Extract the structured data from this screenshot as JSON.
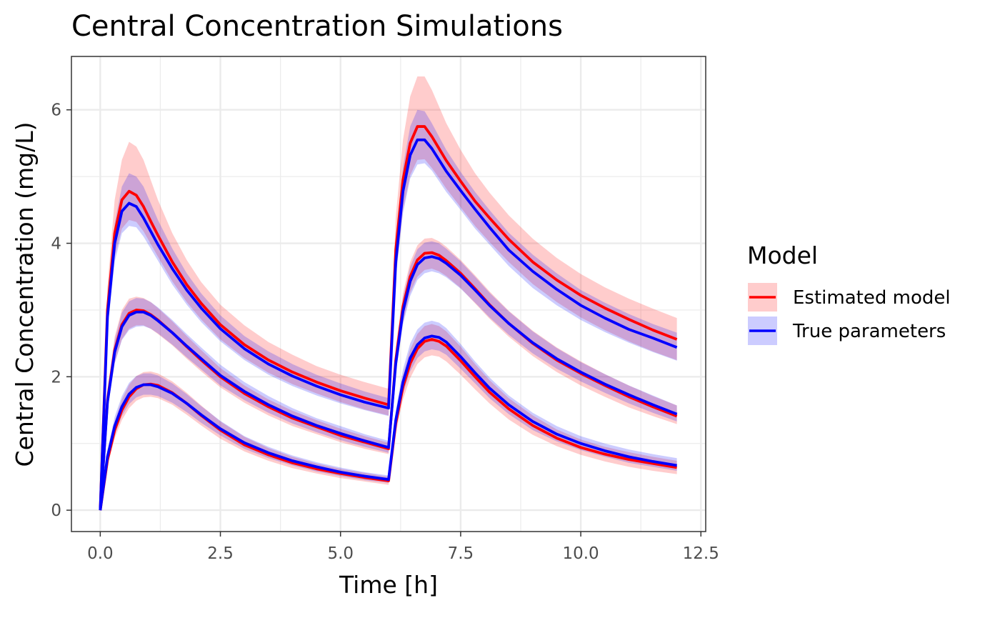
{
  "chart_data": {
    "type": "line",
    "title": "Central Concentration Simulations",
    "xlabel": "Time [h]",
    "ylabel": "Central Concentration (mg/L)",
    "xlim": [
      -0.6,
      12.6
    ],
    "ylim": [
      -0.32,
      6.8
    ],
    "x_ticks": [
      0.0,
      2.5,
      5.0,
      7.5,
      10.0,
      12.5
    ],
    "x_tick_labels": [
      "0.0",
      "2.5",
      "5.0",
      "7.5",
      "10.0",
      "12.5"
    ],
    "y_ticks": [
      0,
      2,
      4,
      6
    ],
    "y_tick_labels": [
      "0",
      "2",
      "4",
      "6"
    ],
    "grid": true,
    "legend": {
      "title": "Model",
      "position": "right",
      "items": [
        {
          "label": "Estimated model",
          "color": "#ff0000",
          "ribbon_color": "#ff0000"
        },
        {
          "label": "True parameters",
          "color": "#0000ff",
          "ribbon_color": "#0000ff"
        }
      ]
    },
    "x": [
      0,
      0.15,
      0.3,
      0.45,
      0.6,
      0.75,
      0.9,
      1.05,
      1.2,
      1.5,
      1.8,
      2.1,
      2.5,
      3.0,
      3.5,
      4.0,
      4.5,
      5.0,
      5.5,
      6.0,
      6.15,
      6.3,
      6.45,
      6.6,
      6.75,
      6.9,
      7.05,
      7.2,
      7.5,
      7.8,
      8.1,
      8.5,
      9.0,
      9.5,
      10.0,
      10.5,
      11.0,
      11.5,
      12.0
    ],
    "series": [
      {
        "name": "Estimated model",
        "color": "#ff0000",
        "group": "high",
        "values": [
          0,
          3.0,
          4.15,
          4.65,
          4.78,
          4.72,
          4.55,
          4.33,
          4.12,
          3.72,
          3.38,
          3.1,
          2.78,
          2.48,
          2.25,
          2.07,
          1.92,
          1.79,
          1.68,
          1.58,
          3.9,
          4.95,
          5.5,
          5.75,
          5.75,
          5.6,
          5.42,
          5.24,
          4.93,
          4.63,
          4.38,
          4.06,
          3.72,
          3.45,
          3.22,
          3.03,
          2.86,
          2.7,
          2.56
        ],
        "lower": [
          0,
          2.7,
          3.8,
          4.22,
          4.35,
          4.32,
          4.18,
          3.99,
          3.8,
          3.43,
          3.12,
          2.86,
          2.56,
          2.28,
          2.06,
          1.89,
          1.75,
          1.62,
          1.51,
          1.42,
          3.5,
          4.5,
          5.02,
          5.25,
          5.26,
          5.13,
          4.98,
          4.82,
          4.54,
          4.26,
          4.02,
          3.72,
          3.39,
          3.12,
          2.89,
          2.7,
          2.53,
          2.38,
          2.25
        ],
        "upper": [
          0,
          3.35,
          4.65,
          5.25,
          5.52,
          5.45,
          5.25,
          4.95,
          4.65,
          4.15,
          3.75,
          3.42,
          3.08,
          2.77,
          2.52,
          2.33,
          2.16,
          2.03,
          1.92,
          1.82,
          4.4,
          5.55,
          6.2,
          6.5,
          6.5,
          6.3,
          6.05,
          5.8,
          5.4,
          5.05,
          4.76,
          4.42,
          4.07,
          3.78,
          3.54,
          3.34,
          3.17,
          3.02,
          2.88
        ]
      },
      {
        "name": "True parameters",
        "color": "#0000ff",
        "group": "high",
        "values": [
          0,
          2.9,
          4.0,
          4.48,
          4.6,
          4.55,
          4.38,
          4.18,
          3.98,
          3.62,
          3.3,
          3.03,
          2.72,
          2.42,
          2.19,
          2.01,
          1.86,
          1.73,
          1.62,
          1.53,
          3.72,
          4.78,
          5.32,
          5.55,
          5.55,
          5.42,
          5.25,
          5.08,
          4.79,
          4.51,
          4.24,
          3.9,
          3.58,
          3.31,
          3.07,
          2.88,
          2.71,
          2.58,
          2.44
        ],
        "lower": [
          0,
          2.68,
          3.72,
          4.15,
          4.26,
          4.24,
          4.1,
          3.92,
          3.74,
          3.38,
          3.08,
          2.82,
          2.53,
          2.25,
          2.03,
          1.86,
          1.72,
          1.6,
          1.5,
          1.41,
          3.48,
          4.45,
          4.97,
          5.18,
          5.2,
          5.09,
          4.93,
          4.77,
          4.5,
          4.22,
          3.98,
          3.66,
          3.33,
          3.07,
          2.85,
          2.67,
          2.51,
          2.37,
          2.24
        ],
        "upper": [
          0,
          3.1,
          4.3,
          4.85,
          5.05,
          5.0,
          4.85,
          4.6,
          4.35,
          3.92,
          3.55,
          3.25,
          2.92,
          2.61,
          2.38,
          2.19,
          2.03,
          1.9,
          1.78,
          1.68,
          4.0,
          5.15,
          5.75,
          6.0,
          5.98,
          5.8,
          5.6,
          5.4,
          5.07,
          4.77,
          4.5,
          4.16,
          3.83,
          3.55,
          3.3,
          3.11,
          2.94,
          2.79,
          2.66
        ]
      },
      {
        "name": "Estimated model",
        "color": "#ff0000",
        "group": "mid",
        "values": [
          0,
          1.65,
          2.4,
          2.78,
          2.95,
          3.0,
          2.99,
          2.93,
          2.85,
          2.66,
          2.45,
          2.25,
          2.0,
          1.75,
          1.55,
          1.38,
          1.25,
          1.12,
          1.02,
          0.92,
          2.25,
          3.05,
          3.5,
          3.75,
          3.85,
          3.86,
          3.82,
          3.74,
          3.55,
          3.32,
          3.08,
          2.8,
          2.5,
          2.25,
          2.05,
          1.87,
          1.7,
          1.55,
          1.41
        ],
        "lower": [
          0,
          1.5,
          2.2,
          2.56,
          2.72,
          2.77,
          2.77,
          2.72,
          2.64,
          2.47,
          2.27,
          2.08,
          1.84,
          1.61,
          1.42,
          1.26,
          1.14,
          1.02,
          0.92,
          0.84,
          2.05,
          2.82,
          3.26,
          3.5,
          3.6,
          3.62,
          3.58,
          3.51,
          3.33,
          3.1,
          2.87,
          2.6,
          2.31,
          2.07,
          1.87,
          1.7,
          1.54,
          1.41,
          1.29
        ],
        "upper": [
          0,
          1.8,
          2.6,
          3.0,
          3.17,
          3.2,
          3.18,
          3.12,
          3.03,
          2.83,
          2.61,
          2.4,
          2.13,
          1.87,
          1.66,
          1.49,
          1.35,
          1.22,
          1.11,
          1.01,
          2.45,
          3.25,
          3.72,
          3.97,
          4.07,
          4.08,
          4.03,
          3.95,
          3.75,
          3.52,
          3.28,
          2.99,
          2.69,
          2.44,
          2.23,
          2.04,
          1.87,
          1.71,
          1.57
        ]
      },
      {
        "name": "True parameters",
        "color": "#0000ff",
        "group": "mid",
        "values": [
          0,
          1.62,
          2.37,
          2.75,
          2.92,
          2.97,
          2.97,
          2.92,
          2.84,
          2.66,
          2.46,
          2.27,
          2.02,
          1.78,
          1.58,
          1.41,
          1.27,
          1.15,
          1.04,
          0.94,
          2.2,
          2.98,
          3.43,
          3.68,
          3.78,
          3.8,
          3.77,
          3.7,
          3.52,
          3.3,
          3.07,
          2.8,
          2.51,
          2.27,
          2.07,
          1.89,
          1.73,
          1.58,
          1.44
        ],
        "lower": [
          0,
          1.5,
          2.2,
          2.55,
          2.7,
          2.75,
          2.76,
          2.72,
          2.65,
          2.48,
          2.29,
          2.11,
          1.87,
          1.65,
          1.46,
          1.3,
          1.17,
          1.05,
          0.95,
          0.86,
          2.05,
          2.78,
          3.21,
          3.45,
          3.55,
          3.58,
          3.55,
          3.49,
          3.32,
          3.11,
          2.89,
          2.63,
          2.35,
          2.12,
          1.93,
          1.76,
          1.6,
          1.46,
          1.33
        ],
        "upper": [
          0,
          1.76,
          2.55,
          2.96,
          3.13,
          3.18,
          3.17,
          3.12,
          3.04,
          2.85,
          2.64,
          2.44,
          2.18,
          1.92,
          1.71,
          1.53,
          1.38,
          1.26,
          1.14,
          1.04,
          2.36,
          3.18,
          3.65,
          3.91,
          4.01,
          4.03,
          4.0,
          3.92,
          3.73,
          3.5,
          3.26,
          2.98,
          2.68,
          2.43,
          2.22,
          2.04,
          1.87,
          1.72,
          1.57
        ]
      },
      {
        "name": "Estimated model",
        "color": "#ff0000",
        "group": "low",
        "values": [
          0,
          0.75,
          1.2,
          1.5,
          1.7,
          1.82,
          1.88,
          1.89,
          1.87,
          1.76,
          1.6,
          1.42,
          1.2,
          0.98,
          0.83,
          0.71,
          0.62,
          0.55,
          0.49,
          0.44,
          1.3,
          1.85,
          2.2,
          2.42,
          2.53,
          2.56,
          2.53,
          2.46,
          2.24,
          2.0,
          1.77,
          1.52,
          1.27,
          1.08,
          0.94,
          0.84,
          0.76,
          0.7,
          0.64
        ],
        "lower": [
          0,
          0.68,
          1.08,
          1.35,
          1.53,
          1.64,
          1.69,
          1.7,
          1.68,
          1.58,
          1.43,
          1.27,
          1.07,
          0.88,
          0.74,
          0.63,
          0.55,
          0.48,
          0.43,
          0.38,
          1.16,
          1.66,
          1.98,
          2.19,
          2.29,
          2.32,
          2.3,
          2.23,
          2.03,
          1.81,
          1.6,
          1.36,
          1.13,
          0.96,
          0.83,
          0.73,
          0.65,
          0.59,
          0.54
        ],
        "upper": [
          0,
          0.83,
          1.33,
          1.66,
          1.88,
          2.01,
          2.07,
          2.08,
          2.05,
          1.93,
          1.76,
          1.57,
          1.33,
          1.1,
          0.93,
          0.8,
          0.7,
          0.62,
          0.56,
          0.5,
          1.43,
          2.03,
          2.41,
          2.64,
          2.76,
          2.79,
          2.76,
          2.68,
          2.45,
          2.19,
          1.95,
          1.68,
          1.42,
          1.21,
          1.06,
          0.95,
          0.87,
          0.8,
          0.74
        ]
      },
      {
        "name": "True parameters",
        "color": "#0000ff",
        "group": "low",
        "values": [
          0,
          0.8,
          1.26,
          1.55,
          1.74,
          1.84,
          1.88,
          1.88,
          1.85,
          1.75,
          1.6,
          1.43,
          1.22,
          1.01,
          0.86,
          0.74,
          0.65,
          0.57,
          0.51,
          0.46,
          1.35,
          1.92,
          2.28,
          2.48,
          2.58,
          2.61,
          2.59,
          2.52,
          2.3,
          2.06,
          1.83,
          1.58,
          1.33,
          1.14,
          1.0,
          0.89,
          0.8,
          0.73,
          0.67
        ],
        "lower": [
          0,
          0.72,
          1.14,
          1.41,
          1.59,
          1.69,
          1.73,
          1.73,
          1.71,
          1.61,
          1.47,
          1.31,
          1.12,
          0.92,
          0.78,
          0.67,
          0.58,
          0.51,
          0.45,
          0.41,
          1.22,
          1.75,
          2.08,
          2.28,
          2.38,
          2.41,
          2.39,
          2.33,
          2.12,
          1.9,
          1.68,
          1.44,
          1.2,
          1.03,
          0.9,
          0.8,
          0.71,
          0.65,
          0.59
        ],
        "upper": [
          0,
          0.9,
          1.4,
          1.71,
          1.91,
          2.01,
          2.05,
          2.05,
          2.02,
          1.9,
          1.74,
          1.56,
          1.34,
          1.11,
          0.95,
          0.82,
          0.72,
          0.64,
          0.57,
          0.52,
          1.5,
          2.11,
          2.5,
          2.71,
          2.81,
          2.84,
          2.81,
          2.73,
          2.49,
          2.23,
          1.99,
          1.72,
          1.46,
          1.26,
          1.11,
          1.0,
          0.91,
          0.84,
          0.78
        ]
      }
    ]
  }
}
